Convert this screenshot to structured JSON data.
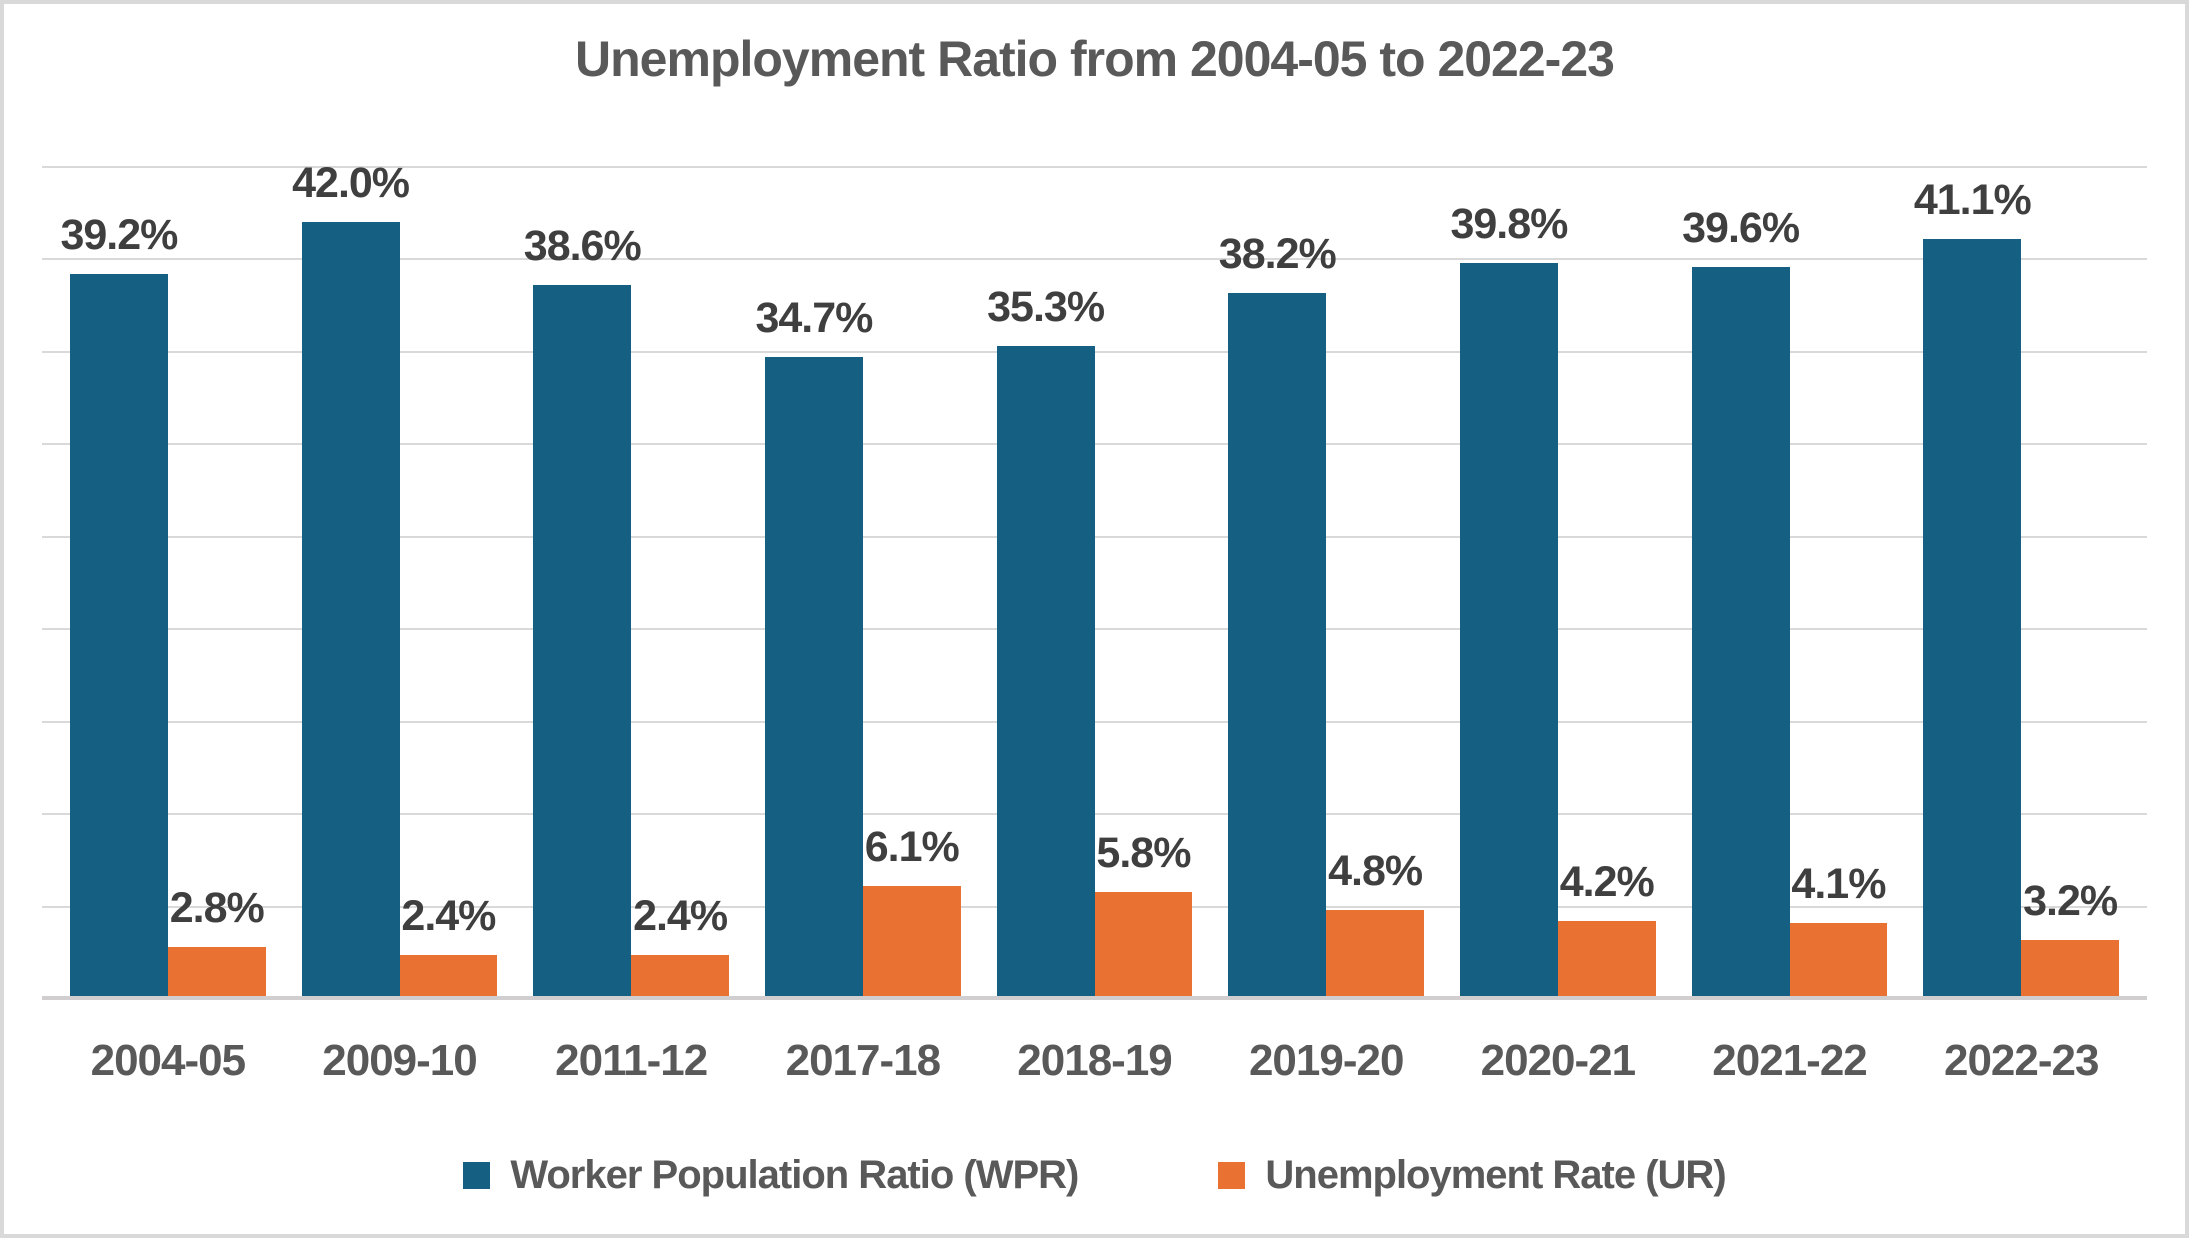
{
  "chart_data": {
    "type": "bar",
    "title": "Unemployment Ratio from 2004-05 to 2022-23",
    "xlabel": "",
    "ylabel": "",
    "categories": [
      "2004-05",
      "2009-10",
      "2011-12",
      "2017-18",
      "2018-19",
      "2019-20",
      "2020-21",
      "2021-22",
      "2022-23"
    ],
    "series": [
      {
        "name": "Worker Population Ratio (WPR)",
        "color": "#156082",
        "values": [
          39.2,
          42.0,
          38.6,
          34.7,
          35.3,
          38.2,
          39.8,
          39.6,
          41.1
        ],
        "labels": [
          "39.2%",
          "42.0%",
          "38.6%",
          "34.7%",
          "35.3%",
          "38.2%",
          "39.8%",
          "39.6%",
          "41.1%"
        ]
      },
      {
        "name": "Unemployment Rate (UR)",
        "color": "#E97132",
        "values": [
          2.8,
          2.4,
          2.4,
          6.1,
          5.8,
          4.8,
          4.2,
          4.1,
          3.2
        ],
        "labels": [
          "2.8%",
          "2.4%",
          "2.4%",
          "6.1%",
          "5.8%",
          "4.8%",
          "4.2%",
          "4.1%",
          "3.2%"
        ]
      }
    ],
    "ylim": [
      0,
      45
    ],
    "gridline_step": 5,
    "grid": true,
    "legend_position": "bottom"
  },
  "colors": {
    "gridline": "#D9D9D9",
    "axis_line": "#D0CECE",
    "frame_border": "#D9D9D9",
    "title_text": "#595959",
    "data_label_text": "#3F3F3F",
    "axis_label_text": "#595959",
    "legend_text": "#595959"
  }
}
